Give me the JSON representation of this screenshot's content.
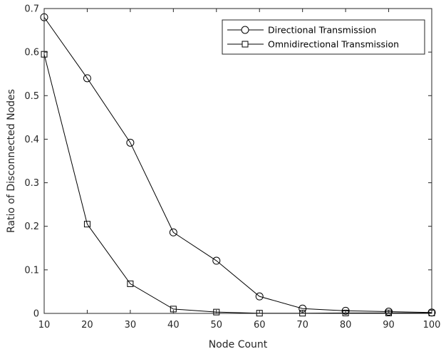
{
  "chart_data": {
    "type": "line",
    "title": "",
    "xlabel": "Node Count",
    "ylabel": "Ratio of Disconnected Nodes",
    "xlim": [
      10,
      100
    ],
    "ylim": [
      0,
      0.7
    ],
    "xticks": [
      10,
      20,
      30,
      40,
      50,
      60,
      70,
      80,
      90,
      100
    ],
    "xtick_labels": [
      "10",
      "20",
      "30",
      "40",
      "50",
      "60",
      "70",
      "80",
      "90",
      "100"
    ],
    "yticks": [
      0,
      0.1,
      0.2,
      0.3,
      0.4,
      0.5,
      0.6,
      0.7
    ],
    "ytick_labels": [
      "0",
      "0.1",
      "0.2",
      "0.3",
      "0.4",
      "0.5",
      "0.6",
      "0.7"
    ],
    "grid": false,
    "legend_position": "top-right",
    "x": [
      10,
      20,
      30,
      40,
      50,
      60,
      70,
      80,
      90,
      100
    ],
    "series": [
      {
        "name": "Directional Transmission",
        "marker": "circle",
        "color": "#000000",
        "values": [
          0.68,
          0.54,
          0.392,
          0.186,
          0.121,
          0.039,
          0.011,
          0.006,
          0.004,
          0.002
        ]
      },
      {
        "name": "Omnidirectional Transmission",
        "marker": "square",
        "color": "#000000",
        "values": [
          0.595,
          0.205,
          0.068,
          0.01,
          0.003,
          0.0005,
          0.0005,
          0.001,
          0.001,
          0.001
        ]
      }
    ]
  }
}
